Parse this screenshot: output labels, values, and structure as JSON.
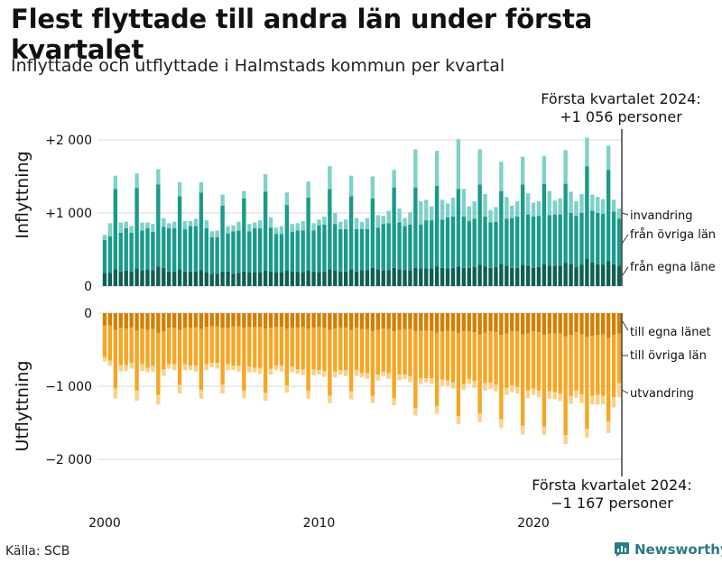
{
  "header": {
    "title": "Flest flyttade till andra län under första kvartalet",
    "subtitle": "Inflyttade och utflyttade i Halmstads kommun per kvartal"
  },
  "footer": {
    "source": "Källa: SCB",
    "brand": "Newsworthy"
  },
  "colors": {
    "in_egna": "#0e5f55",
    "in_ovriga": "#1a9a8a",
    "in_invandring": "#7fd1c8",
    "out_egna": "#d47f00",
    "out_ovriga": "#f5a623",
    "out_utvandring": "#fbd08a",
    "grid": "#d9d9d9",
    "brand": "#2a7b84"
  },
  "chart_data": [
    {
      "type": "bar",
      "stacked": true,
      "panel": "top",
      "ylabel": "Inflyttning",
      "ylim": [
        0,
        2050
      ],
      "yticks": [
        0,
        1000,
        2000
      ],
      "ytick_labels": [
        "0",
        "+1 000",
        "+2 000"
      ],
      "grid": true,
      "series": [
        {
          "name": "från egna läne",
          "values": [
            180,
            180,
            230,
            200,
            210,
            200,
            240,
            210,
            230,
            220,
            270,
            250,
            200,
            200,
            230,
            200,
            200,
            200,
            220,
            190,
            170,
            170,
            200,
            200,
            170,
            180,
            200,
            190,
            190,
            190,
            210,
            200,
            190,
            190,
            210,
            200,
            200,
            190,
            210,
            200,
            190,
            200,
            230,
            210,
            200,
            200,
            230,
            200,
            220,
            220,
            250,
            230,
            210,
            220,
            250,
            230,
            220,
            220,
            250,
            240,
            240,
            240,
            270,
            250,
            240,
            250,
            270,
            250,
            250,
            260,
            290,
            270,
            250,
            260,
            300,
            280,
            250,
            250,
            290,
            280,
            250,
            260,
            300,
            280,
            280,
            280,
            320,
            300,
            260,
            290,
            370,
            320,
            300,
            290,
            340,
            300,
            280
          ]
        },
        {
          "name": "från övriga län",
          "values": [
            450,
            500,
            1100,
            530,
            580,
            530,
            1100,
            550,
            560,
            520,
            1120,
            560,
            590,
            590,
            1000,
            580,
            620,
            620,
            1060,
            600,
            500,
            500,
            900,
            520,
            580,
            580,
            1000,
            560,
            600,
            600,
            1080,
            600,
            520,
            520,
            900,
            540,
            560,
            570,
            1000,
            560,
            640,
            640,
            1100,
            640,
            580,
            580,
            1000,
            580,
            560,
            560,
            950,
            570,
            640,
            640,
            1100,
            640,
            600,
            620,
            1100,
            600,
            660,
            660,
            1100,
            660,
            700,
            700,
            1060,
            700,
            640,
            660,
            1100,
            680,
            620,
            620,
            1000,
            640,
            680,
            700,
            1100,
            700,
            700,
            700,
            1100,
            690,
            700,
            700,
            1080,
            700,
            700,
            710,
            1270,
            710,
            700,
            700,
            1250,
            720,
            640
          ]
        },
        {
          "name": "invandring",
          "values": [
            70,
            180,
            180,
            140,
            90,
            90,
            200,
            110,
            80,
            110,
            210,
            120,
            70,
            90,
            190,
            110,
            70,
            100,
            140,
            110,
            80,
            90,
            150,
            100,
            80,
            120,
            100,
            100,
            80,
            110,
            240,
            140,
            90,
            110,
            170,
            110,
            100,
            130,
            220,
            100,
            80,
            110,
            310,
            150,
            100,
            130,
            280,
            150,
            100,
            150,
            300,
            170,
            110,
            170,
            240,
            190,
            110,
            170,
            520,
            320,
            280,
            190,
            480,
            270,
            190,
            260,
            680,
            380,
            200,
            240,
            480,
            310,
            170,
            200,
            400,
            300,
            170,
            210,
            380,
            290,
            190,
            200,
            380,
            330,
            190,
            220,
            460,
            290,
            200,
            260,
            390,
            220,
            220,
            200,
            330,
            160,
            140
          ]
        }
      ]
    },
    {
      "type": "bar",
      "stacked": true,
      "panel": "bottom",
      "ylabel": "Utflyttning",
      "ylim": [
        -2050,
        0
      ],
      "yticks": [
        -2000,
        -1000,
        0
      ],
      "ytick_labels": [
        "−2 000",
        "−1 000",
        "0"
      ],
      "grid": true,
      "series": [
        {
          "name": "till egna länet",
          "values": [
            -170,
            -170,
            -230,
            -200,
            -210,
            -200,
            -240,
            -210,
            -230,
            -220,
            -270,
            -250,
            -200,
            -200,
            -230,
            -200,
            -200,
            -200,
            -220,
            -190,
            -180,
            -180,
            -200,
            -200,
            -180,
            -180,
            -200,
            -190,
            -190,
            -190,
            -210,
            -200,
            -190,
            -190,
            -210,
            -200,
            -200,
            -190,
            -210,
            -200,
            -190,
            -200,
            -230,
            -210,
            -200,
            -200,
            -230,
            -200,
            -220,
            -220,
            -250,
            -230,
            -210,
            -220,
            -250,
            -230,
            -220,
            -220,
            -250,
            -240,
            -240,
            -240,
            -270,
            -250,
            -240,
            -250,
            -270,
            -250,
            -250,
            -260,
            -290,
            -270,
            -250,
            -260,
            -300,
            -280,
            -250,
            -250,
            -290,
            -280,
            -250,
            -260,
            -300,
            -280,
            -280,
            -280,
            -320,
            -300,
            -260,
            -290,
            -330,
            -310,
            -300,
            -290,
            -340,
            -300,
            -280
          ]
        },
        {
          "name": "till övriga län",
          "values": [
            -430,
            -480,
            -800,
            -510,
            -500,
            -480,
            -820,
            -490,
            -520,
            -500,
            -850,
            -520,
            -500,
            -500,
            -750,
            -500,
            -520,
            -520,
            -830,
            -510,
            -500,
            -500,
            -780,
            -500,
            -540,
            -540,
            -860,
            -540,
            -560,
            -560,
            -880,
            -560,
            -530,
            -530,
            -780,
            -530,
            -570,
            -580,
            -850,
            -570,
            -590,
            -590,
            -900,
            -590,
            -580,
            -580,
            -840,
            -580,
            -600,
            -600,
            -880,
            -610,
            -590,
            -600,
            -910,
            -610,
            -620,
            -640,
            -1050,
            -650,
            -650,
            -650,
            -1000,
            -660,
            -680,
            -700,
            -1140,
            -720,
            -650,
            -670,
            -1080,
            -690,
            -700,
            -720,
            -1150,
            -740,
            -740,
            -760,
            -1250,
            -780,
            -780,
            -800,
            -1250,
            -790,
            -800,
            -820,
            -1350,
            -830,
            -800,
            -820,
            -1250,
            -820,
            -820,
            -840,
            -1140,
            -850,
            -680
          ]
        },
        {
          "name": "utvandring",
          "values": [
            -60,
            -70,
            -140,
            -90,
            -80,
            -80,
            -140,
            -90,
            -60,
            -80,
            -130,
            -90,
            -60,
            -80,
            -120,
            -80,
            -60,
            -80,
            -120,
            -80,
            -60,
            -80,
            -120,
            -80,
            -60,
            -80,
            -100,
            -80,
            -60,
            -80,
            -110,
            -80,
            -60,
            -80,
            -100,
            -80,
            -60,
            -80,
            -110,
            -80,
            -60,
            -80,
            -100,
            -80,
            -60,
            -80,
            -110,
            -80,
            -60,
            -80,
            -100,
            -80,
            -60,
            -80,
            -100,
            -80,
            -60,
            -80,
            -100,
            -80,
            -60,
            -80,
            -110,
            -80,
            -80,
            -80,
            -110,
            -80,
            -70,
            -90,
            -120,
            -100,
            -90,
            -90,
            -120,
            -100,
            -90,
            -90,
            -120,
            -100,
            -90,
            -90,
            -120,
            -100,
            -100,
            -100,
            -120,
            -110,
            -100,
            -120,
            -120,
            -120,
            -130,
            -120,
            -160,
            -140,
            -190
          ]
        }
      ]
    }
  ],
  "x_axis": {
    "start_year": 2000,
    "ticks": [
      2000,
      2010,
      2020
    ]
  },
  "annotations": {
    "top": {
      "line1": "Första kvartalet 2024:",
      "line2": "+1 056 personer"
    },
    "bottom": {
      "line1": "Första kvartalet 2024:",
      "line2": "−1 167 personer"
    }
  }
}
